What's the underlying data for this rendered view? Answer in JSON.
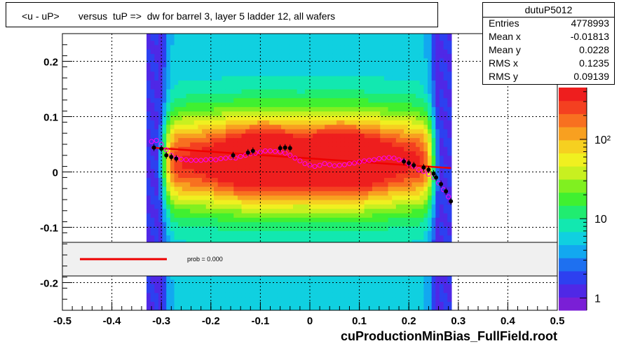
{
  "title": "<u - uP>       versus  tuP =>  dw for barrel 3, layer 5 ladder 12, all wafers",
  "stats": {
    "name": "dutuP5012",
    "rows": [
      {
        "label": "Entries",
        "value": "4778993"
      },
      {
        "label": "Mean x",
        "value": "-0.01813"
      },
      {
        "label": "Mean y",
        "value": "0.0228"
      },
      {
        "label": "RMS x",
        "value": "0.1235"
      },
      {
        "label": "RMS y",
        "value": "0.09139"
      }
    ]
  },
  "legend": {
    "text": "prob = 0.000",
    "line_color": "#ee0000"
  },
  "footer": "cuProductionMinBias_FullField.root",
  "chart_data": {
    "type": "heatmap",
    "title": "<u - uP>       versus  tuP =>  dw for barrel 3, layer 5 ladder 12, all wafers",
    "xlabel": "",
    "ylabel": "",
    "xlim": [
      -0.5,
      0.5
    ],
    "ylim": [
      -0.25,
      0.25
    ],
    "x_ticks": [
      {
        "v": -0.5,
        "label": "-0.5"
      },
      {
        "v": -0.4,
        "label": "-0.4"
      },
      {
        "v": -0.3,
        "label": "-0.3"
      },
      {
        "v": -0.2,
        "label": "-0.2"
      },
      {
        "v": -0.1,
        "label": "-0.1"
      },
      {
        "v": 0,
        "label": "0"
      },
      {
        "v": 0.1,
        "label": "0.1"
      },
      {
        "v": 0.2,
        "label": "0.2"
      },
      {
        "v": 0.3,
        "label": "0.3"
      },
      {
        "v": 0.4,
        "label": "0.4"
      },
      {
        "v": 0.5,
        "label": "0.5"
      }
    ],
    "y_ticks": [
      {
        "v": 0.2,
        "label": "0.2"
      },
      {
        "v": 0.1,
        "label": "0.1"
      },
      {
        "v": 0,
        "label": "0"
      },
      {
        "v": -0.1,
        "label": "-0.1"
      },
      {
        "v": -0.2,
        "label": "-0.2"
      }
    ],
    "z_scale": "log",
    "z_ticks": [
      {
        "v": 1,
        "label": "1"
      },
      {
        "v": 10,
        "label": "10"
      },
      {
        "v": 100,
        "label": "10²"
      }
    ],
    "grid": true,
    "colors": {
      "palette": [
        "#7a1fd6",
        "#4f28e6",
        "#2d40f0",
        "#1e70f0",
        "#12a8f0",
        "#10d0e0",
        "#12e8b0",
        "#20ec70",
        "#40f030",
        "#80f020",
        "#c8f020",
        "#f0f020",
        "#f6d020",
        "#f8a020",
        "#f87020",
        "#f44020",
        "#ee1e1e"
      ],
      "fit_line": "#ee0000",
      "profile_a": "#000000",
      "profile_b": "#ff00ff"
    },
    "fit_line": {
      "x": [
        -0.32,
        0.285
      ],
      "y": [
        0.044,
        0.007
      ]
    },
    "series": [
      {
        "marker": "filled-circle",
        "x": [
          -0.315,
          -0.3,
          -0.29,
          -0.28,
          -0.27,
          -0.155,
          -0.125,
          -0.115,
          -0.06,
          -0.05,
          -0.04,
          0.19,
          0.2,
          0.21,
          0.23,
          0.24,
          0.25,
          0.255,
          0.265,
          0.275,
          0.285
        ],
        "y": [
          0.044,
          0.042,
          0.03,
          0.027,
          0.024,
          0.03,
          0.035,
          0.038,
          0.043,
          0.044,
          0.043,
          0.019,
          0.016,
          0.012,
          0.008,
          0.004,
          -0.003,
          -0.01,
          -0.022,
          -0.035,
          -0.053
        ]
      },
      {
        "marker": "open-circle",
        "x": [
          -0.32,
          -0.31,
          -0.3,
          -0.29,
          -0.28,
          -0.27,
          -0.26,
          -0.25,
          -0.24,
          -0.23,
          -0.22,
          -0.21,
          -0.2,
          -0.19,
          -0.18,
          -0.17,
          -0.16,
          -0.15,
          -0.14,
          -0.13,
          -0.12,
          -0.11,
          -0.1,
          -0.09,
          -0.08,
          -0.07,
          -0.06,
          -0.05,
          -0.04,
          -0.03,
          -0.02,
          -0.01,
          0,
          0.01,
          0.02,
          0.03,
          0.04,
          0.05,
          0.06,
          0.07,
          0.08,
          0.09,
          0.1,
          0.11,
          0.12,
          0.13,
          0.14,
          0.15,
          0.16,
          0.17,
          0.18,
          0.19,
          0.2,
          0.21,
          0.22,
          0.23,
          0.24,
          0.25,
          0.26,
          0.27,
          0.28
        ],
        "y": [
          0.055,
          0.057,
          0.05,
          0.04,
          0.03,
          0.025,
          0.023,
          0.022,
          0.021,
          0.021,
          0.021,
          0.022,
          0.023,
          0.022,
          0.024,
          0.025,
          0.026,
          0.025,
          0.028,
          0.03,
          0.033,
          0.034,
          0.036,
          0.038,
          0.038,
          0.037,
          0.036,
          0.034,
          0.03,
          0.025,
          0.02,
          0.015,
          0.012,
          0.01,
          0.012,
          0.015,
          0.013,
          0.011,
          0.012,
          0.013,
          0.015,
          0.016,
          0.018,
          0.02,
          0.021,
          0.022,
          0.024,
          0.025,
          0.026,
          0.025,
          0.022,
          0.02,
          0.015,
          0.01,
          0.004,
          0.001,
          -0.004,
          -0.01,
          -0.02,
          -0.032,
          -0.045
        ]
      }
    ]
  }
}
